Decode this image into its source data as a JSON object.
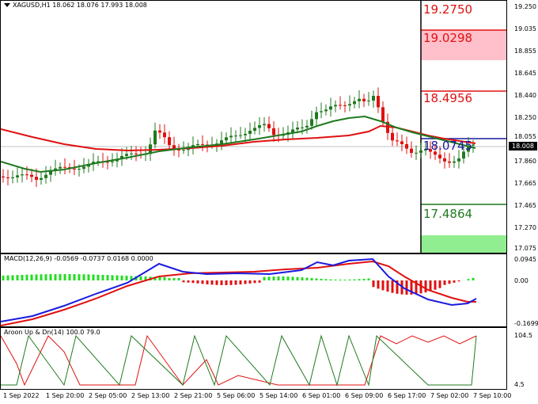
{
  "main": {
    "header": "XAGUSD,H1  18.062 18.076 17.993 18.008",
    "price_axis": [
      "19.250",
      "19.035",
      "18.855",
      "18.645",
      "18.440",
      "18.250",
      "18.055",
      "17.860",
      "17.665",
      "17.465",
      "17.270",
      "17.075"
    ],
    "current_price": "18.008",
    "levels": [
      {
        "label": "19.2750",
        "color": "#e01010"
      },
      {
        "label": "19.0298",
        "color": "#e01010"
      },
      {
        "label": "18.4956",
        "color": "#e01010"
      },
      {
        "label": "18.0745",
        "color": "#1a1aa0"
      },
      {
        "label": "17.4864",
        "color": "#1f7a1f"
      }
    ]
  },
  "macd": {
    "header": "MACD(12,26,9) -0.0569 -0.0737 0.0168 0.0000",
    "axis": [
      "0.0945",
      "0.00",
      "-0.1699"
    ]
  },
  "aroon": {
    "header": "Aroon Up & Dn(14) 100.0 79.0",
    "axis": [
      "104.5",
      "4.5"
    ]
  },
  "time_axis": [
    "1 Sep 2022",
    "1 Sep 20:00",
    "2 Sep 05:00",
    "2 Sep 13:00",
    "2 Sep 21:00",
    "5 Sep 06:00",
    "5 Sep 14:00",
    "6 Sep 01:00",
    "6 Sep 09:00",
    "6 Sep 17:00",
    "7 Sep 02:00",
    "7 Sep 10:00"
  ],
  "colors": {
    "bull": "#1f7a1f",
    "bear": "#e01010",
    "ma_fast": "#1f7a1f",
    "ma_slow": "#e01010",
    "macd_line": "#1a1ae0",
    "signal_line": "#e01010"
  }
}
